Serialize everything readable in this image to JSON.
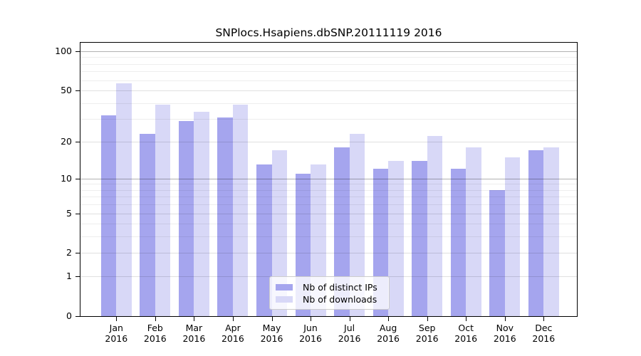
{
  "chart_data": {
    "type": "bar",
    "title": "SNPlocs.Hsapiens.dbSNP.20111119 2016",
    "categories": [
      "Jan",
      "Feb",
      "Mar",
      "Apr",
      "May",
      "Jun",
      "Jul",
      "Aug",
      "Sep",
      "Oct",
      "Nov",
      "Dec"
    ],
    "year": "2016",
    "series": [
      {
        "name": "Nb of distinct IPs",
        "color": "#a5a5ee",
        "values": [
          32,
          23,
          29,
          31,
          13,
          11,
          18,
          12,
          14,
          12,
          8,
          17
        ]
      },
      {
        "name": "Nb of downloads",
        "color": "#d8d8f7",
        "values": [
          57,
          39,
          34,
          39,
          17,
          13,
          23,
          14,
          22,
          18,
          15,
          18
        ]
      }
    ],
    "y_scale": "log1p",
    "ylim": [
      0,
      116
    ],
    "y_ticks": [
      0,
      1,
      2,
      5,
      10,
      20,
      50,
      100
    ],
    "gridlines": {
      "light": [
        3,
        4,
        6,
        7,
        8,
        9,
        30,
        40,
        60,
        70,
        80,
        90
      ],
      "medium": [
        1,
        2,
        5,
        20,
        50
      ],
      "dark": [
        10,
        100
      ]
    },
    "grid": true,
    "legend_position": "bottom-center",
    "xlabel": "",
    "ylabel": ""
  },
  "colors": {
    "axis": "#000000",
    "background": "#ffffff",
    "legend_border": "#cccccc"
  }
}
